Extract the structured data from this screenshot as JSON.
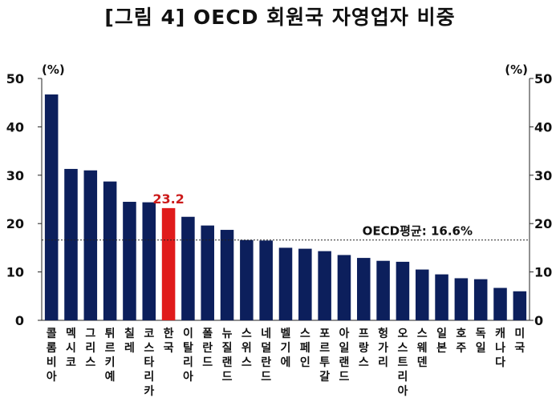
{
  "chart_data": {
    "type": "bar",
    "title": "[그림 4] OECD 회원국 자영업자 비중",
    "unit_left": "(%)",
    "unit_right": "(%)",
    "ylim": [
      0,
      50
    ],
    "yticks": [
      0,
      10,
      20,
      30,
      40,
      50
    ],
    "categories": [
      "콜롬비아",
      "멕시코",
      "그리스",
      "튀르키예",
      "칠레",
      "코스타리카",
      "한국",
      "이탈리아",
      "폴란드",
      "뉴질랜드",
      "스위스",
      "네덜란드",
      "벨기에",
      "스페인",
      "포르투갈",
      "아일랜드",
      "프랑스",
      "헝가리",
      "오스트리아",
      "스웨덴",
      "일본",
      "호주",
      "독일",
      "캐나다",
      "미국"
    ],
    "values": [
      46.7,
      31.3,
      31.0,
      28.7,
      24.5,
      24.4,
      23.2,
      21.4,
      19.6,
      18.7,
      16.6,
      16.5,
      15.0,
      14.8,
      14.3,
      13.5,
      12.9,
      12.3,
      12.1,
      10.5,
      9.5,
      8.7,
      8.5,
      6.7,
      6.0
    ],
    "highlight_index": 6,
    "highlight_label": "23.2",
    "reference_line": {
      "label": "OECD평균: 16.6%",
      "value": 16.6
    },
    "colors": {
      "bar": "#0c1f5c",
      "highlight": "#e01b1b",
      "highlight_text": "#cc1b1b"
    }
  }
}
